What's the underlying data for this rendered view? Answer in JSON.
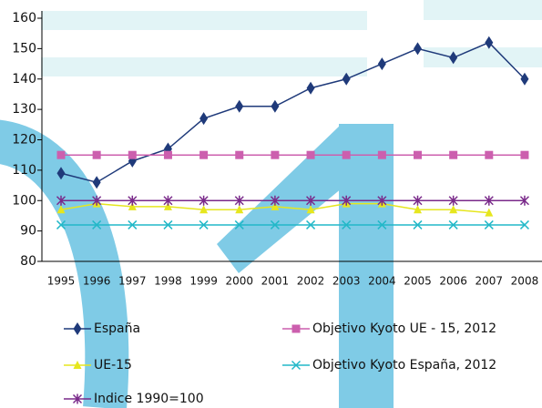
{
  "chart_data": {
    "type": "line",
    "categories": [
      "1995",
      "1996",
      "1997",
      "1998",
      "1999",
      "2000",
      "2001",
      "2002",
      "2003",
      "2004",
      "2005",
      "2006",
      "2007",
      "2008"
    ],
    "series": [
      {
        "name": "España",
        "color": "#1f3a7a",
        "marker": "diamond",
        "values": [
          109,
          106,
          113,
          117,
          127,
          131,
          131,
          137,
          140,
          145,
          150,
          147,
          152,
          140
        ]
      },
      {
        "name": "Objetivo Kyoto UE - 15, 2012",
        "color": "#cc5fae",
        "marker": "square",
        "values": [
          115,
          115,
          115,
          115,
          115,
          115,
          115,
          115,
          115,
          115,
          115,
          115,
          115,
          115
        ]
      },
      {
        "name": "UE-15",
        "color": "#e6e61e",
        "marker": "triangle",
        "values": [
          97,
          99,
          98,
          98,
          97,
          97,
          98,
          97,
          99,
          99,
          97,
          97,
          96,
          null
        ]
      },
      {
        "name": "Objetivo Kyoto España, 2012",
        "color": "#22b8c8",
        "marker": "x",
        "values": [
          92,
          92,
          92,
          92,
          92,
          92,
          92,
          92,
          92,
          92,
          92,
          92,
          92,
          92
        ]
      },
      {
        "name": "Indice 1990=100",
        "color": "#7a2a8a",
        "marker": "star",
        "values": [
          100,
          100,
          100,
          100,
          100,
          100,
          100,
          100,
          100,
          100,
          100,
          100,
          100,
          100
        ]
      }
    ],
    "ylim": [
      80,
      160
    ],
    "yticks": [
      80,
      90,
      100,
      110,
      120,
      130,
      140,
      150,
      160
    ]
  }
}
